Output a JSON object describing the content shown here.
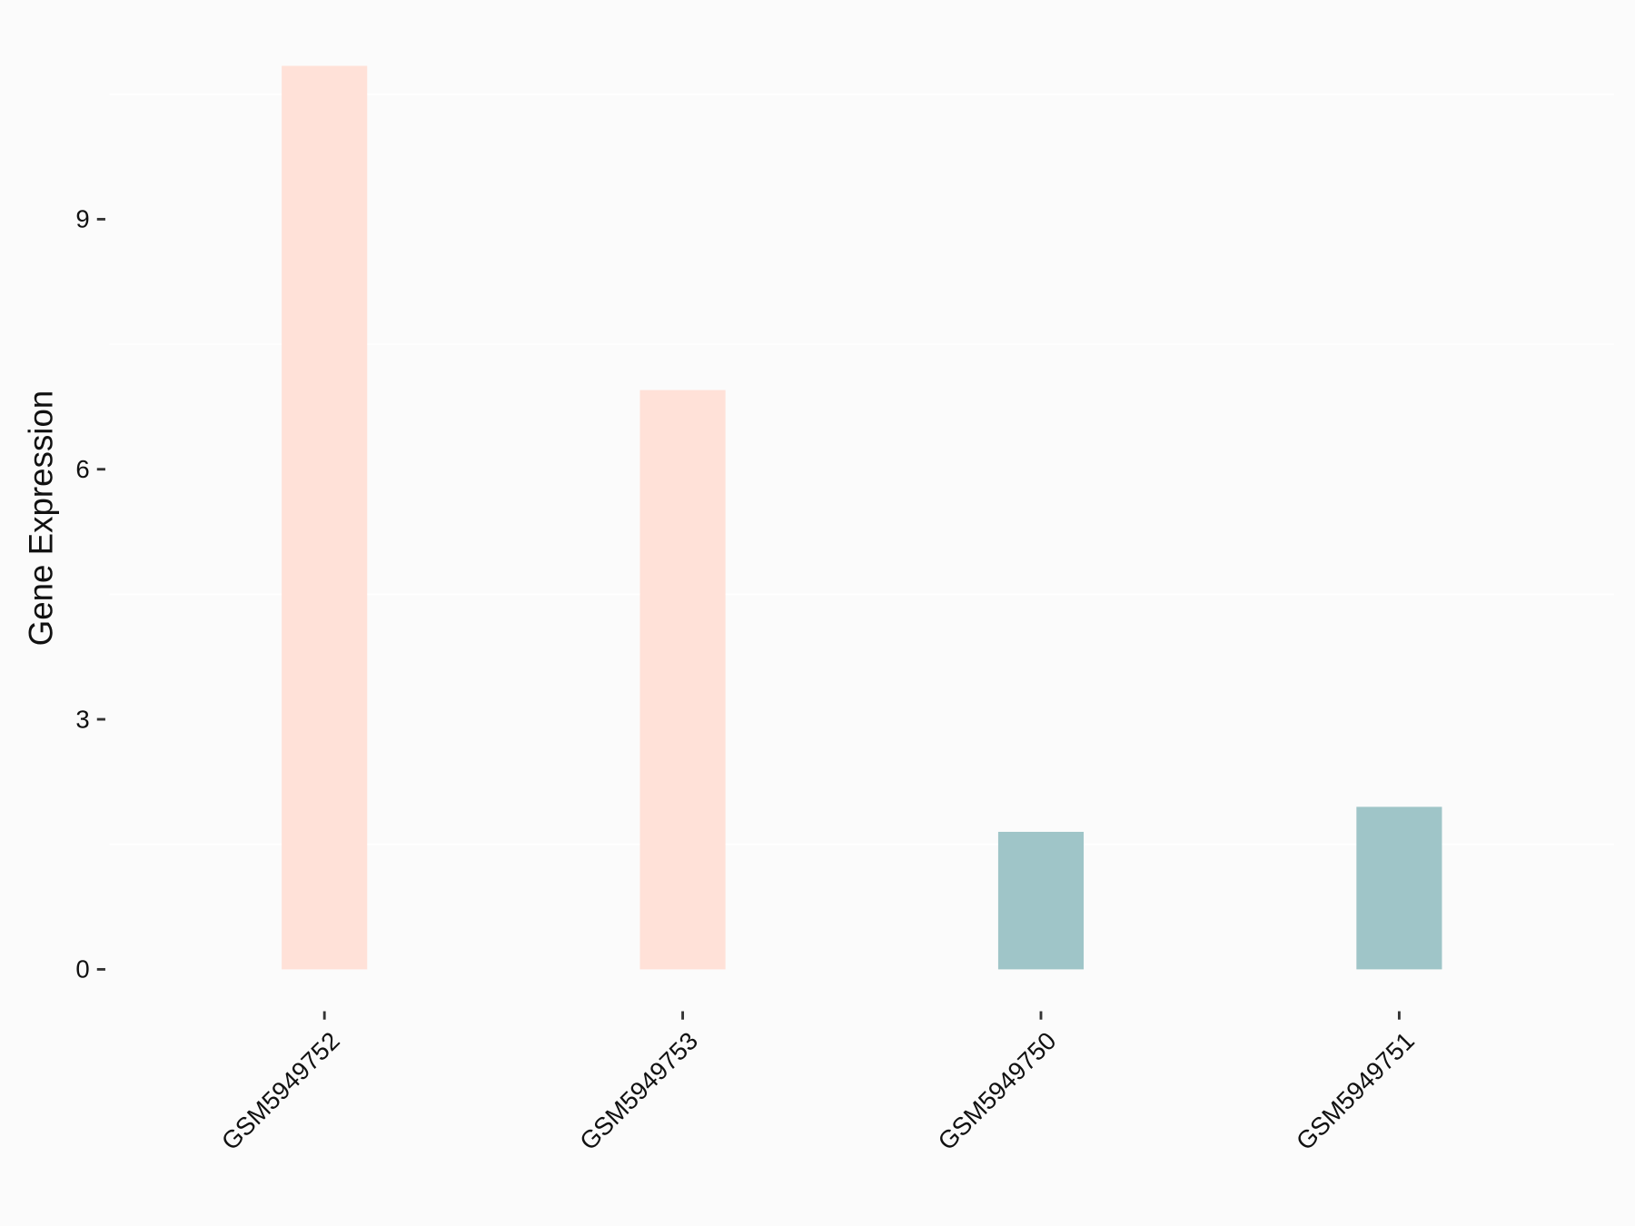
{
  "chart_data": {
    "type": "bar",
    "y_label": "Gene Expression",
    "categories": [
      "GSM5949752",
      "GSM5949753",
      "GSM5949750",
      "GSM5949751"
    ],
    "values": [
      10.84,
      6.95,
      1.65,
      1.95
    ],
    "colors": [
      "#ffe1d8",
      "#ffe1d8",
      "#9fc5c8",
      "#9fc5c8"
    ],
    "ylim": [
      -0.54,
      11.38
    ],
    "yticks": [
      0,
      3,
      6,
      9
    ],
    "minor_grid": [
      1.5,
      4.5,
      7.5,
      10.5
    ]
  }
}
